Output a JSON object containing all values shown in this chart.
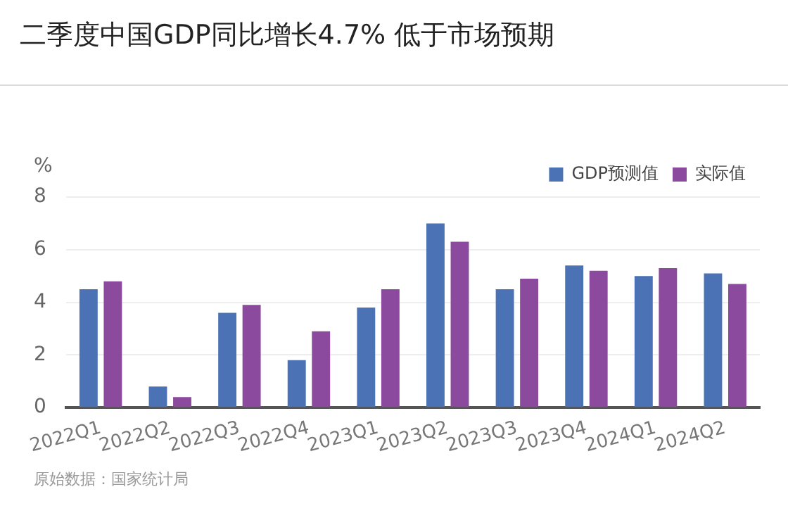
{
  "chart_data": {
    "type": "bar",
    "title": "二季度中国GDP同比增长4.7% 低于市场预期",
    "ylabel": "%",
    "categories": [
      "2022Q1",
      "2022Q2",
      "2022Q3",
      "2022Q4",
      "2023Q1",
      "2023Q2",
      "2023Q3",
      "2023Q4",
      "2024Q1",
      "2024Q2"
    ],
    "series": [
      {
        "name": "GDP预测值",
        "color": "#4a72b4",
        "values": [
          4.5,
          0.8,
          3.6,
          1.8,
          3.8,
          7.0,
          4.5,
          5.4,
          5.0,
          5.1
        ]
      },
      {
        "name": "实际值",
        "color": "#8c4a9e",
        "values": [
          4.8,
          0.4,
          3.9,
          2.9,
          4.5,
          6.3,
          4.9,
          5.2,
          5.3,
          4.7
        ]
      }
    ],
    "ylim": [
      0,
      8
    ],
    "yticks": [
      0,
      2,
      4,
      6,
      8
    ],
    "grid": "y",
    "legend": "top right",
    "annotations": [
      "原始数据：国家统计局"
    ]
  }
}
